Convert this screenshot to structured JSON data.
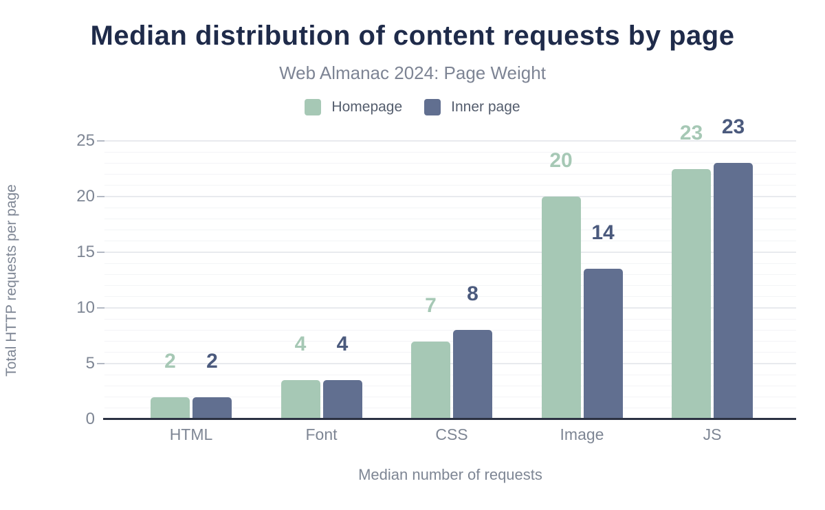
{
  "header": {
    "title": "Median distribution of content requests by page",
    "subtitle": "Web Almanac 2024: Page Weight"
  },
  "chart_data": {
    "type": "bar",
    "title": "Median distribution of content requests by page",
    "subtitle": "Web Almanac 2024: Page Weight",
    "categories": [
      "HTML",
      "Font",
      "CSS",
      "Image",
      "JS"
    ],
    "series": [
      {
        "name": "Homepage",
        "color": "#a6c8b5",
        "label_color": "#a6c8b5",
        "values": [
          2,
          4,
          7,
          20,
          23
        ],
        "plotted_values": [
          2,
          3.5,
          7,
          20,
          22.5
        ]
      },
      {
        "name": "Inner page",
        "color": "#616f90",
        "label_color": "#4b5a7d",
        "values": [
          2,
          4,
          8,
          14,
          23
        ],
        "plotted_values": [
          2,
          3.5,
          8,
          13.5,
          23
        ]
      }
    ],
    "xlabel": "Median number of requests",
    "ylabel": "Total HTTP requests per page",
    "ylim": [
      0,
      25
    ],
    "yticks": [
      0,
      5,
      10,
      15,
      20,
      25
    ],
    "grid": "horizontal minor every 1 unit, emphasized every 5 units",
    "legend_position": "top center"
  },
  "colors": {
    "title": "#1f2b4a",
    "subtitle": "#7d8494",
    "axis_text": "#7e8694",
    "legend_text": "#545d6d",
    "axis_line": "#2b3142",
    "gridline_minor": "#f3f4f6",
    "gridline_major": "#e8eaee",
    "homepage_bar": "#a6c8b5",
    "inner_page_bar": "#616f90",
    "inner_page_label": "#4b5a7d",
    "background": "#ffffff"
  }
}
